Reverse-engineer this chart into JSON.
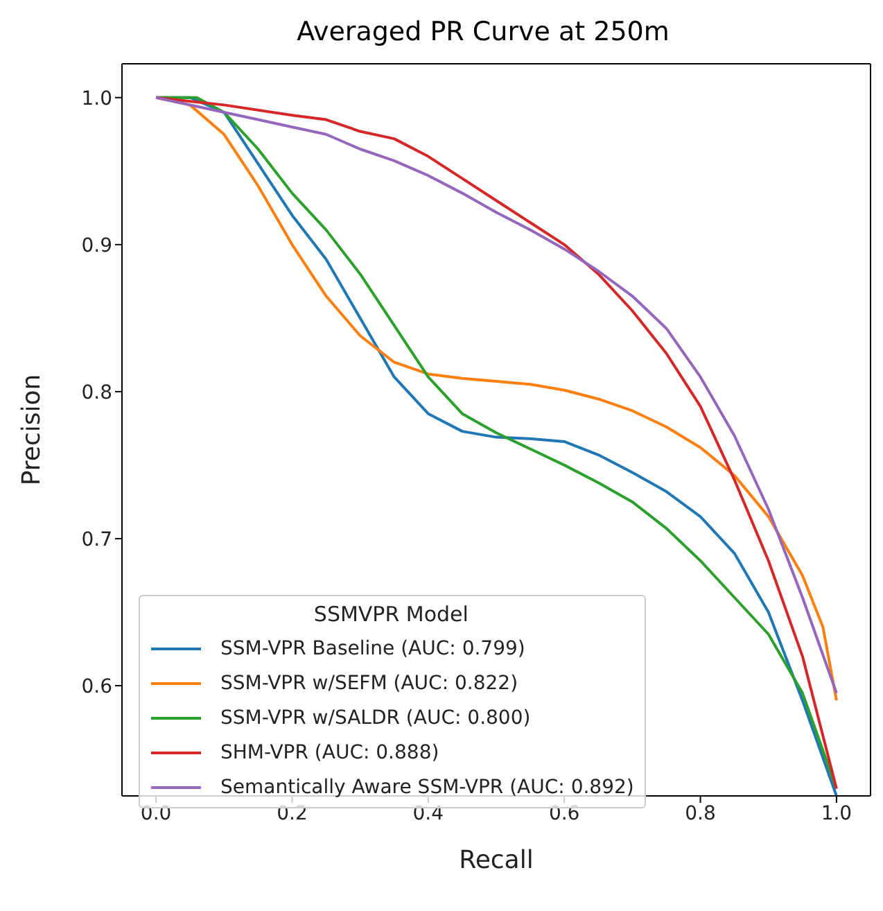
{
  "chart_data": {
    "type": "line",
    "title": "Averaged PR Curve at 250m",
    "xlabel": "Recall",
    "ylabel": "Precision",
    "legend_title": "SSMVPR Model",
    "legend": "bottom left",
    "marker": "none",
    "line_style": "solid",
    "xlim": [
      -0.05,
      1.05
    ],
    "ylim": [
      0.525,
      1.023
    ],
    "xticks": [
      {
        "value": 0,
        "label": "0.0"
      },
      {
        "value": 0.2,
        "label": "0.2"
      },
      {
        "value": 0.4,
        "label": "0.4"
      },
      {
        "value": 0.6,
        "label": "0.6"
      },
      {
        "value": 0.8,
        "label": "0.8"
      },
      {
        "value": 1,
        "label": "1.0"
      }
    ],
    "yticks": [
      {
        "value": 0.6,
        "label": "0.6"
      },
      {
        "value": 0.7,
        "label": "0.7"
      },
      {
        "value": 0.8,
        "label": "0.8"
      },
      {
        "value": 0.9,
        "label": "0.9"
      },
      {
        "value": 1,
        "label": "1.0"
      }
    ],
    "series": [
      {
        "name": "SSM-VPR Baseline (AUC: 0.799)",
        "color": "#1f77b4",
        "x": [
          0,
          0.05,
          0.1,
          0.15,
          0.2,
          0.25,
          0.3,
          0.35,
          0.4,
          0.45,
          0.5,
          0.55,
          0.6,
          0.65,
          0.7,
          0.75,
          0.8,
          0.85,
          0.9,
          0.95,
          1
        ],
        "values": [
          1,
          1,
          0.99,
          0.955,
          0.92,
          0.89,
          0.85,
          0.81,
          0.785,
          0.773,
          0.769,
          0.768,
          0.766,
          0.757,
          0.745,
          0.732,
          0.715,
          0.69,
          0.65,
          0.59,
          0.525
        ]
      },
      {
        "name": "SSM-VPR w/SEFM (AUC: 0.822)",
        "color": "#ff7f0e",
        "x": [
          0,
          0.05,
          0.1,
          0.15,
          0.2,
          0.25,
          0.3,
          0.35,
          0.4,
          0.45,
          0.5,
          0.55,
          0.6,
          0.65,
          0.7,
          0.75,
          0.8,
          0.85,
          0.9,
          0.95,
          0.98,
          1
        ],
        "values": [
          1,
          0.995,
          0.975,
          0.94,
          0.9,
          0.865,
          0.838,
          0.82,
          0.812,
          0.809,
          0.807,
          0.805,
          0.801,
          0.795,
          0.787,
          0.776,
          0.762,
          0.743,
          0.715,
          0.675,
          0.64,
          0.59
        ]
      },
      {
        "name": "SSM-VPR w/SALDR (AUC: 0.800)",
        "color": "#2ca02c",
        "x": [
          0,
          0.06,
          0.1,
          0.15,
          0.2,
          0.25,
          0.3,
          0.35,
          0.4,
          0.45,
          0.5,
          0.55,
          0.6,
          0.65,
          0.7,
          0.75,
          0.8,
          0.85,
          0.9,
          0.95,
          1
        ],
        "values": [
          1,
          1,
          0.99,
          0.965,
          0.935,
          0.91,
          0.88,
          0.845,
          0.81,
          0.785,
          0.772,
          0.761,
          0.75,
          0.738,
          0.725,
          0.707,
          0.685,
          0.66,
          0.635,
          0.595,
          0.53
        ]
      },
      {
        "name": "SHM-VPR (AUC: 0.888)",
        "color": "#d62728",
        "x": [
          0,
          0.1,
          0.2,
          0.25,
          0.3,
          0.35,
          0.4,
          0.45,
          0.5,
          0.55,
          0.6,
          0.65,
          0.7,
          0.75,
          0.8,
          0.85,
          0.9,
          0.95,
          1
        ],
        "values": [
          1,
          0.995,
          0.988,
          0.985,
          0.977,
          0.972,
          0.96,
          0.945,
          0.93,
          0.915,
          0.9,
          0.88,
          0.855,
          0.826,
          0.79,
          0.74,
          0.685,
          0.62,
          0.53
        ]
      },
      {
        "name": "Semantically Aware SSM-VPR (AUC: 0.892)",
        "color": "#9467bd",
        "x": [
          0,
          0.1,
          0.15,
          0.2,
          0.25,
          0.3,
          0.35,
          0.4,
          0.45,
          0.5,
          0.55,
          0.6,
          0.65,
          0.7,
          0.75,
          0.8,
          0.85,
          0.9,
          0.95,
          1
        ],
        "values": [
          1,
          0.99,
          0.985,
          0.98,
          0.975,
          0.965,
          0.957,
          0.947,
          0.935,
          0.922,
          0.91,
          0.897,
          0.882,
          0.865,
          0.843,
          0.81,
          0.77,
          0.72,
          0.66,
          0.595
        ]
      }
    ]
  }
}
